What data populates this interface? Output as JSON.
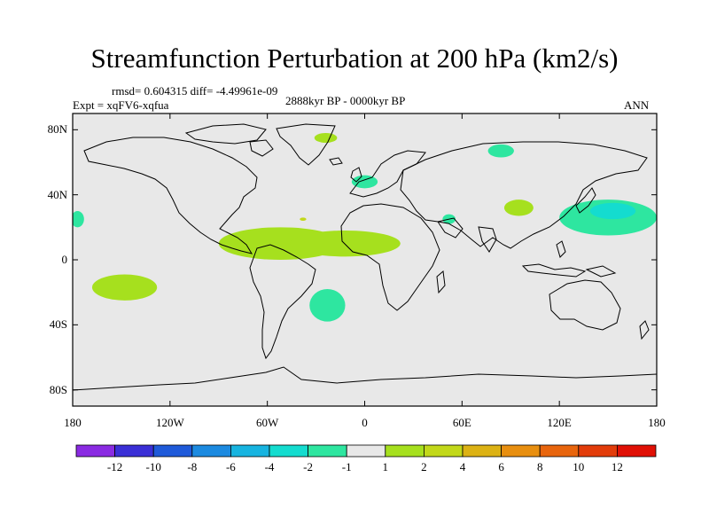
{
  "chart_data": {
    "type": "heatmap",
    "title": "Streamfunction Perturbation at 200 hPa (km2/s)",
    "stats_text": "rmsd= 0.604315 diff= -4.49961e-09",
    "experiment_text": "Expt = xqFV6-xqfua",
    "period_text": "2888kyr BP - 0000kyr BP",
    "season_text": "ANN",
    "x_range": [
      -180,
      180
    ],
    "y_range": [
      -90,
      90
    ],
    "x_ticks": [
      {
        "value": -180,
        "label": "180"
      },
      {
        "value": -120,
        "label": "120W"
      },
      {
        "value": -60,
        "label": "60W"
      },
      {
        "value": 0,
        "label": "0"
      },
      {
        "value": 60,
        "label": "60E"
      },
      {
        "value": 120,
        "label": "120E"
      },
      {
        "value": 180,
        "label": "180"
      }
    ],
    "y_ticks": [
      {
        "value": 80,
        "label": "80N"
      },
      {
        "value": 40,
        "label": "40N"
      },
      {
        "value": 0,
        "label": "0"
      },
      {
        "value": -40,
        "label": "40S"
      },
      {
        "value": -80,
        "label": "80S"
      }
    ],
    "colorbar": {
      "colors": [
        "#8a2be2",
        "#3a2fd6",
        "#1f5ad9",
        "#1c8ae0",
        "#17b4e0",
        "#14dccf",
        "#2ee6a0",
        "#e8e8e8",
        "#a6e01e",
        "#c2d81a",
        "#dcb214",
        "#e88f10",
        "#e8650d",
        "#e23c0a",
        "#e01005"
      ],
      "labels": [
        "-12",
        "-10",
        "-8",
        "-6",
        "-4",
        "-2",
        "-1",
        "1",
        "2",
        "4",
        "6",
        "8",
        "10",
        "12"
      ]
    },
    "background_color": "#e8e8e8",
    "anomalies": [
      {
        "level": "2",
        "color": "#a6e01e",
        "lon": -52,
        "lat": 10,
        "rlon": 38,
        "rlat": 10
      },
      {
        "level": "2",
        "color": "#a6e01e",
        "lon": -12,
        "lat": 10,
        "rlon": 34,
        "rlat": 8
      },
      {
        "level": "2",
        "color": "#a6e01e",
        "lon": -24,
        "lat": 75,
        "rlon": 7,
        "rlat": 3
      },
      {
        "level": "2",
        "color": "#a6e01e",
        "lon": 95,
        "lat": 32,
        "rlon": 9,
        "rlat": 5
      },
      {
        "level": "2",
        "color": "#a6e01e",
        "lon": -148,
        "lat": -17,
        "rlon": 20,
        "rlat": 8
      },
      {
        "level": "4",
        "color": "#c2d81a",
        "lon": -38,
        "lat": 25,
        "rlon": 2,
        "rlat": 1
      },
      {
        "level": "-1",
        "color": "#2ee6a0",
        "lon": 0,
        "lat": 48,
        "rlon": 8,
        "rlat": 4
      },
      {
        "level": "-1",
        "color": "#2ee6a0",
        "lon": 84,
        "lat": 67,
        "rlon": 8,
        "rlat": 4
      },
      {
        "level": "-1",
        "color": "#2ee6a0",
        "lon": 52,
        "lat": 25,
        "rlon": 4,
        "rlat": 3
      },
      {
        "level": "-1",
        "color": "#2ee6a0",
        "lon": 150,
        "lat": 26,
        "rlon": 30,
        "rlat": 11
      },
      {
        "level": "-1",
        "color": "#2ee6a0",
        "lon": -177,
        "lat": 25,
        "rlon": 4,
        "rlat": 5
      },
      {
        "level": "-1",
        "color": "#2ee6a0",
        "lon": -23,
        "lat": -28,
        "rlon": 11,
        "rlat": 10
      },
      {
        "level": "-2",
        "color": "#14dccf",
        "lon": 153,
        "lat": 30,
        "rlon": 14,
        "rlat": 5
      }
    ]
  }
}
